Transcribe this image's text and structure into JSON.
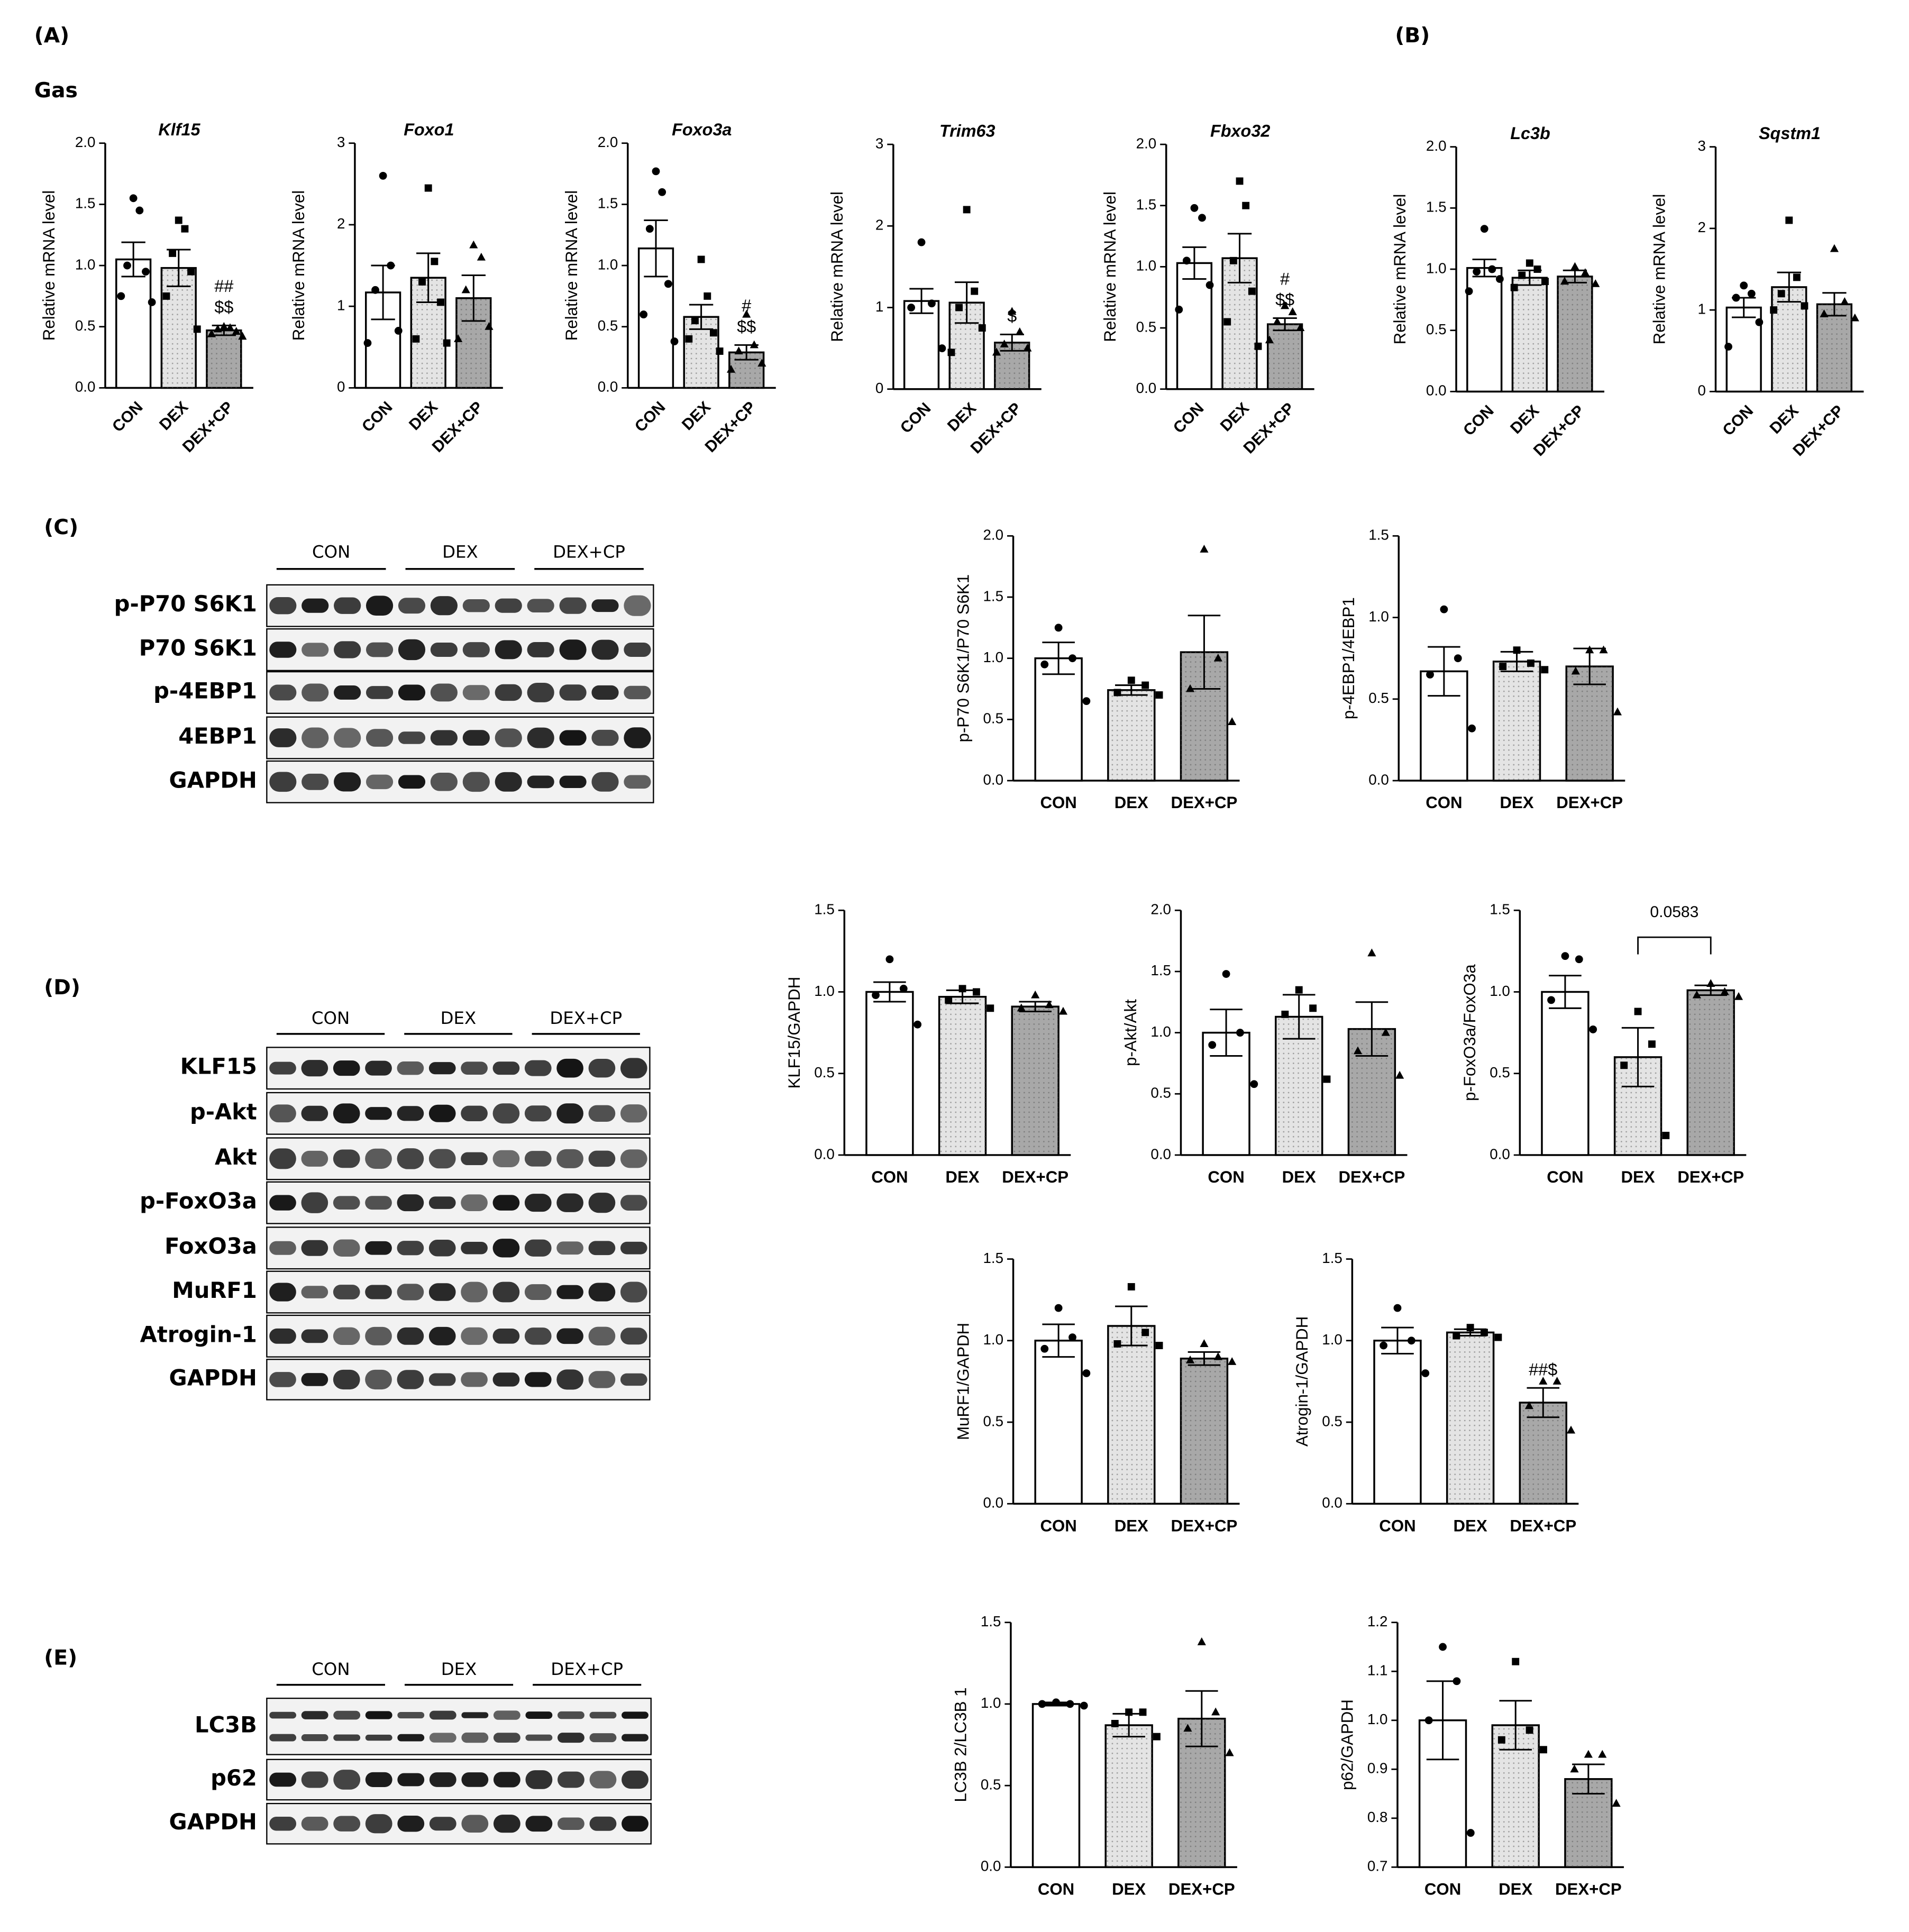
{
  "panel_labels": [
    "(A)",
    "(B)",
    "(C)",
    "(D)",
    "(E)"
  ],
  "tissue": "Gas",
  "blots": [
    {
      "groups": [
        "CON",
        "DEX",
        "DEX+CP"
      ],
      "rows": [
        "p-P70 S6K1",
        "P70 S6K1",
        "p-4EBP1",
        "4EBP1",
        "GAPDH"
      ]
    },
    {
      "groups": [
        "CON",
        "DEX",
        "DEX+CP"
      ],
      "rows": [
        "KLF15",
        "p-Akt",
        "Akt",
        "p-FoxO3a",
        "FoxO3a",
        "MuRF1",
        "Atrogin-1",
        "GAPDH"
      ]
    },
    {
      "groups": [
        "CON",
        "DEX",
        "DEX+CP"
      ],
      "rows": [
        "LC3B",
        "p62",
        "GAPDH"
      ]
    }
  ],
  "chart_data": [
    {
      "type": "bar",
      "title": "Klf15",
      "ylabel": "Relative mRNA level",
      "categories": [
        "CON",
        "DEX",
        "DEX+CP"
      ],
      "values": [
        1.05,
        0.98,
        0.47
      ],
      "errors": [
        0.14,
        0.15,
        0.04
      ],
      "points": [
        [
          1.55,
          1.45,
          1.0,
          0.95,
          0.75,
          0.7
        ],
        [
          1.37,
          1.3,
          1.1,
          0.95,
          0.75,
          0.48
        ],
        [
          0.5,
          0.49,
          0.48,
          0.46,
          0.44,
          0.42
        ]
      ],
      "annotations": [
        [],
        [],
        [
          "##",
          "$$"
        ]
      ],
      "ylim": [
        0,
        2
      ],
      "yticks": [
        {
          "value": 0,
          "label": "0.0"
        },
        0.5,
        {
          "value": 1,
          "label": "1.0"
        },
        1.5,
        {
          "value": 2,
          "label": "2.0"
        }
      ],
      "colors": [
        "#ffffff",
        "#e4e4e4",
        "#a8a8a8"
      ],
      "markers": [
        "circle",
        "square",
        "triangle"
      ]
    },
    {
      "type": "bar",
      "title": "Foxo1",
      "ylabel": "Relative mRNA level",
      "categories": [
        "CON",
        "DEX",
        "DEX+CP"
      ],
      "values": [
        1.17,
        1.35,
        1.1
      ],
      "errors": [
        0.33,
        0.3,
        0.28
      ],
      "points": [
        [
          2.6,
          1.5,
          1.2,
          0.7,
          0.55
        ],
        [
          2.45,
          1.55,
          1.3,
          1.05,
          0.6,
          0.55
        ],
        [
          1.75,
          1.6,
          1.2,
          0.75,
          0.6
        ]
      ],
      "annotations": [
        [],
        [],
        []
      ],
      "ylim": [
        0,
        3
      ],
      "yticks": [
        0,
        1,
        2,
        3
      ],
      "colors": [
        "#ffffff",
        "#e4e4e4",
        "#a8a8a8"
      ],
      "markers": [
        "circle",
        "square",
        "triangle"
      ]
    },
    {
      "type": "bar",
      "title": "Foxo3a",
      "ylabel": "Relative mRNA level",
      "categories": [
        "CON",
        "DEX",
        "DEX+CP"
      ],
      "values": [
        1.14,
        0.58,
        0.29
      ],
      "errors": [
        0.23,
        0.1,
        0.06
      ],
      "points": [
        [
          1.77,
          1.6,
          1.3,
          0.85,
          0.6,
          0.38
        ],
        [
          1.05,
          0.75,
          0.55,
          0.45,
          0.4,
          0.3
        ],
        [
          0.6,
          0.35,
          0.3,
          0.2,
          0.15
        ]
      ],
      "annotations": [
        [],
        [],
        [
          "#",
          "$$"
        ]
      ],
      "ylim": [
        0,
        2
      ],
      "yticks": [
        {
          "value": 0,
          "label": "0.0"
        },
        0.5,
        {
          "value": 1,
          "label": "1.0"
        },
        1.5,
        {
          "value": 2,
          "label": "2.0"
        }
      ],
      "colors": [
        "#ffffff",
        "#e4e4e4",
        "#a8a8a8"
      ],
      "markers": [
        "circle",
        "square",
        "triangle"
      ]
    },
    {
      "type": "bar",
      "title": "Trim63",
      "ylabel": "Relative mRNA level",
      "categories": [
        "CON",
        "DEX",
        "DEX+CP"
      ],
      "values": [
        1.08,
        1.06,
        0.57
      ],
      "errors": [
        0.15,
        0.25,
        0.1
      ],
      "points": [
        [
          1.8,
          1.05,
          1.0,
          0.5
        ],
        [
          2.2,
          1.2,
          1.0,
          0.75,
          0.45
        ],
        [
          0.95,
          0.7,
          0.55,
          0.5,
          0.45
        ]
      ],
      "annotations": [
        [],
        [],
        [
          "$"
        ]
      ],
      "ylim": [
        0,
        3
      ],
      "yticks": [
        0,
        1,
        2,
        3
      ],
      "colors": [
        "#ffffff",
        "#e4e4e4",
        "#a8a8a8"
      ],
      "markers": [
        "circle",
        "square",
        "triangle"
      ]
    },
    {
      "type": "bar",
      "title": "Fbxo32",
      "ylabel": "Relative mRNA level",
      "categories": [
        "CON",
        "DEX",
        "DEX+CP"
      ],
      "values": [
        1.03,
        1.07,
        0.53
      ],
      "errors": [
        0.13,
        0.2,
        0.05
      ],
      "points": [
        [
          1.48,
          1.4,
          1.05,
          0.85,
          0.65
        ],
        [
          1.7,
          1.5,
          1.05,
          0.8,
          0.55,
          0.35
        ],
        [
          0.68,
          0.63,
          0.55,
          0.5,
          0.4
        ]
      ],
      "annotations": [
        [],
        [],
        [
          "#",
          "$$"
        ]
      ],
      "ylim": [
        0,
        2
      ],
      "yticks": [
        {
          "value": 0,
          "label": "0.0"
        },
        0.5,
        {
          "value": 1,
          "label": "1.0"
        },
        1.5,
        {
          "value": 2,
          "label": "2.0"
        }
      ],
      "colors": [
        "#ffffff",
        "#e4e4e4",
        "#a8a8a8"
      ],
      "markers": [
        "circle",
        "square",
        "triangle"
      ]
    },
    {
      "type": "bar",
      "title": "Lc3b",
      "ylabel": "Relative mRNA level",
      "categories": [
        "CON",
        "DEX",
        "DEX+CP"
      ],
      "values": [
        1.01,
        0.93,
        0.94
      ],
      "errors": [
        0.07,
        0.06,
        0.05
      ],
      "points": [
        [
          1.33,
          1.0,
          0.98,
          0.92,
          0.82
        ],
        [
          1.05,
          1.0,
          0.95,
          0.9,
          0.85
        ],
        [
          1.02,
          0.97,
          0.9,
          0.88
        ]
      ],
      "annotations": [
        [],
        [],
        []
      ],
      "ylim": [
        0,
        2
      ],
      "yticks": [
        {
          "value": 0,
          "label": "0.0"
        },
        0.5,
        {
          "value": 1,
          "label": "1.0"
        },
        1.5,
        {
          "value": 2,
          "label": "2.0"
        }
      ],
      "colors": [
        "#ffffff",
        "#e4e4e4",
        "#a8a8a8"
      ],
      "markers": [
        "circle",
        "square",
        "triangle"
      ]
    },
    {
      "type": "bar",
      "title": "Sqstm1",
      "ylabel": "Relative mRNA level",
      "categories": [
        "CON",
        "DEX",
        "DEX+CP"
      ],
      "values": [
        1.03,
        1.28,
        1.07
      ],
      "errors": [
        0.12,
        0.18,
        0.14
      ],
      "points": [
        [
          1.3,
          1.2,
          1.15,
          0.85,
          0.55
        ],
        [
          2.1,
          1.4,
          1.2,
          1.05,
          1.0
        ],
        [
          1.75,
          1.1,
          0.95,
          0.9
        ]
      ],
      "annotations": [
        [],
        [],
        []
      ],
      "ylim": [
        0,
        3
      ],
      "yticks": [
        0,
        1,
        2,
        3
      ],
      "colors": [
        "#ffffff",
        "#e4e4e4",
        "#a8a8a8"
      ],
      "markers": [
        "circle",
        "square",
        "triangle"
      ]
    },
    {
      "type": "bar",
      "ylabel": "p-P70 S6K1/P70 S6K1",
      "categories": [
        "CON",
        "DEX",
        "DEX+CP"
      ],
      "values": [
        1.0,
        0.74,
        1.05
      ],
      "errors": [
        0.13,
        0.04,
        0.3
      ],
      "points": [
        [
          1.25,
          1.0,
          0.95,
          0.65
        ],
        [
          0.82,
          0.78,
          0.72,
          0.7
        ],
        [
          1.89,
          1.0,
          0.75,
          0.48
        ]
      ],
      "annotations": [
        [],
        [],
        []
      ],
      "ylim": [
        0,
        2
      ],
      "yticks": [
        {
          "value": 0,
          "label": "0.0"
        },
        0.5,
        {
          "value": 1,
          "label": "1.0"
        },
        1.5,
        {
          "value": 2,
          "label": "2.0"
        }
      ],
      "colors": [
        "#ffffff",
        "#e4e4e4",
        "#a8a8a8"
      ],
      "markers": [
        "circle",
        "square",
        "triangle"
      ]
    },
    {
      "type": "bar",
      "ylabel": "p-4EBP1/4EBP1",
      "categories": [
        "CON",
        "DEX",
        "DEX+CP"
      ],
      "values": [
        0.67,
        0.73,
        0.7
      ],
      "errors": [
        0.15,
        0.06,
        0.11
      ],
      "points": [
        [
          1.05,
          0.75,
          0.65,
          0.32
        ],
        [
          0.8,
          0.72,
          0.7,
          0.68
        ],
        [
          0.8,
          0.8,
          0.67,
          0.42
        ]
      ],
      "annotations": [
        [],
        [],
        []
      ],
      "ylim": [
        0,
        1.5
      ],
      "yticks": [
        {
          "value": 0,
          "label": "0.0"
        },
        0.5,
        {
          "value": 1,
          "label": "1.0"
        },
        1.5
      ],
      "colors": [
        "#ffffff",
        "#e4e4e4",
        "#a8a8a8"
      ],
      "markers": [
        "circle",
        "square",
        "triangle"
      ]
    },
    {
      "type": "bar",
      "ylabel": "KLF15/GAPDH",
      "categories": [
        "CON",
        "DEX",
        "DEX+CP"
      ],
      "values": [
        1.0,
        0.97,
        0.91
      ],
      "errors": [
        0.06,
        0.04,
        0.03
      ],
      "points": [
        [
          1.2,
          1.02,
          0.98,
          0.8
        ],
        [
          1.02,
          1.0,
          0.95,
          0.9
        ],
        [
          0.98,
          0.92,
          0.9,
          0.88
        ]
      ],
      "annotations": [
        [],
        [],
        []
      ],
      "ylim": [
        0,
        1.5
      ],
      "yticks": [
        {
          "value": 0,
          "label": "0.0"
        },
        0.5,
        {
          "value": 1,
          "label": "1.0"
        },
        1.5
      ],
      "colors": [
        "#ffffff",
        "#e4e4e4",
        "#a8a8a8"
      ],
      "markers": [
        "circle",
        "square",
        "triangle"
      ]
    },
    {
      "type": "bar",
      "ylabel": "p-Akt/Akt",
      "categories": [
        "CON",
        "DEX",
        "DEX+CP"
      ],
      "values": [
        1.0,
        1.13,
        1.03
      ],
      "errors": [
        0.19,
        0.18,
        0.22
      ],
      "points": [
        [
          1.48,
          1.0,
          0.9,
          0.58
        ],
        [
          1.35,
          1.2,
          1.15,
          0.62
        ],
        [
          1.65,
          1.0,
          0.85,
          0.65
        ]
      ],
      "annotations": [
        [],
        [],
        []
      ],
      "ylim": [
        0,
        2
      ],
      "yticks": [
        {
          "value": 0,
          "label": "0.0"
        },
        0.5,
        {
          "value": 1,
          "label": "1.0"
        },
        1.5,
        {
          "value": 2,
          "label": "2.0"
        }
      ],
      "colors": [
        "#ffffff",
        "#e4e4e4",
        "#a8a8a8"
      ],
      "markers": [
        "circle",
        "square",
        "triangle"
      ]
    },
    {
      "type": "bar",
      "ylabel": "p-FoxO3a/FoxO3a",
      "categories": [
        "CON",
        "DEX",
        "DEX+CP"
      ],
      "values": [
        1.0,
        0.6,
        1.01
      ],
      "errors": [
        0.1,
        0.18,
        0.03
      ],
      "points": [
        [
          1.22,
          1.2,
          0.95,
          0.77
        ],
        [
          0.88,
          0.68,
          0.55,
          0.12
        ],
        [
          1.05,
          1.0,
          0.98,
          0.97
        ]
      ],
      "annotations": [
        [],
        [],
        []
      ],
      "comparisons": [
        {
          "groups": [
            "DEX",
            "DEX+CP"
          ],
          "p_value": 0.0583
        }
      ],
      "ylim": [
        0,
        1.5
      ],
      "yticks": [
        {
          "value": 0,
          "label": "0.0"
        },
        0.5,
        {
          "value": 1,
          "label": "1.0"
        },
        1.5
      ],
      "colors": [
        "#ffffff",
        "#e4e4e4",
        "#a8a8a8"
      ],
      "markers": [
        "circle",
        "square",
        "triangle"
      ]
    },
    {
      "type": "bar",
      "ylabel": "MuRF1/GAPDH",
      "categories": [
        "CON",
        "DEX",
        "DEX+CP"
      ],
      "values": [
        1.0,
        1.09,
        0.89
      ],
      "errors": [
        0.1,
        0.12,
        0.04
      ],
      "points": [
        [
          1.2,
          1.02,
          0.95,
          0.8
        ],
        [
          1.33,
          1.05,
          0.98,
          0.97
        ],
        [
          0.98,
          0.9,
          0.88,
          0.87
        ]
      ],
      "annotations": [
        [],
        [],
        []
      ],
      "ylim": [
        0,
        1.5
      ],
      "yticks": [
        {
          "value": 0,
          "label": "0.0"
        },
        0.5,
        {
          "value": 1,
          "label": "1.0"
        },
        1.5
      ],
      "colors": [
        "#ffffff",
        "#e4e4e4",
        "#a8a8a8"
      ],
      "markers": [
        "circle",
        "square",
        "triangle"
      ]
    },
    {
      "type": "bar",
      "ylabel": "Atrogin-1/GAPDH",
      "categories": [
        "CON",
        "DEX",
        "DEX+CP"
      ],
      "values": [
        1.0,
        1.05,
        0.62
      ],
      "errors": [
        0.08,
        0.02,
        0.09
      ],
      "points": [
        [
          1.2,
          1.0,
          0.97,
          0.8
        ],
        [
          1.08,
          1.05,
          1.03,
          1.02
        ],
        [
          0.75,
          0.75,
          0.6,
          0.45
        ]
      ],
      "annotations": [
        [],
        [],
        [
          "##$"
        ]
      ],
      "ylim": [
        0,
        1.5
      ],
      "yticks": [
        {
          "value": 0,
          "label": "0.0"
        },
        0.5,
        {
          "value": 1,
          "label": "1.0"
        },
        1.5
      ],
      "colors": [
        "#ffffff",
        "#e4e4e4",
        "#a8a8a8"
      ],
      "markers": [
        "circle",
        "square",
        "triangle"
      ]
    },
    {
      "type": "bar",
      "ylabel": "LC3B 2/LC3B 1",
      "categories": [
        "CON",
        "DEX",
        "DEX+CP"
      ],
      "values": [
        1.0,
        0.87,
        0.91
      ],
      "errors": [
        0.01,
        0.07,
        0.17
      ],
      "points": [
        [
          1.01,
          1.0,
          1.0,
          0.99
        ],
        [
          0.95,
          0.95,
          0.88,
          0.8
        ],
        [
          1.38,
          0.95,
          0.85,
          0.7
        ]
      ],
      "annotations": [
        [],
        [],
        []
      ],
      "ylim": [
        0,
        1.5
      ],
      "yticks": [
        {
          "value": 0,
          "label": "0.0"
        },
        0.5,
        {
          "value": 1,
          "label": "1.0"
        },
        1.5
      ],
      "colors": [
        "#ffffff",
        "#e4e4e4",
        "#a8a8a8"
      ],
      "markers": [
        "circle",
        "square",
        "triangle"
      ]
    },
    {
      "type": "bar",
      "ylabel": "p62/GAPDH",
      "categories": [
        "CON",
        "DEX",
        "DEX+CP"
      ],
      "values": [
        1.0,
        0.99,
        0.88
      ],
      "errors": [
        0.08,
        0.05,
        0.03
      ],
      "points": [
        [
          1.15,
          1.08,
          1.0,
          0.77
        ],
        [
          1.12,
          0.98,
          0.96,
          0.94
        ],
        [
          0.93,
          0.93,
          0.9,
          0.83
        ]
      ],
      "annotations": [
        [],
        [],
        []
      ],
      "ylim": [
        0.7,
        1.2
      ],
      "yticks": [
        0.7,
        0.8,
        0.9,
        {
          "value": 1,
          "label": "1.0"
        },
        1.1,
        1.2
      ],
      "colors": [
        "#ffffff",
        "#e4e4e4",
        "#a8a8a8"
      ],
      "markers": [
        "circle",
        "square",
        "triangle"
      ]
    }
  ]
}
